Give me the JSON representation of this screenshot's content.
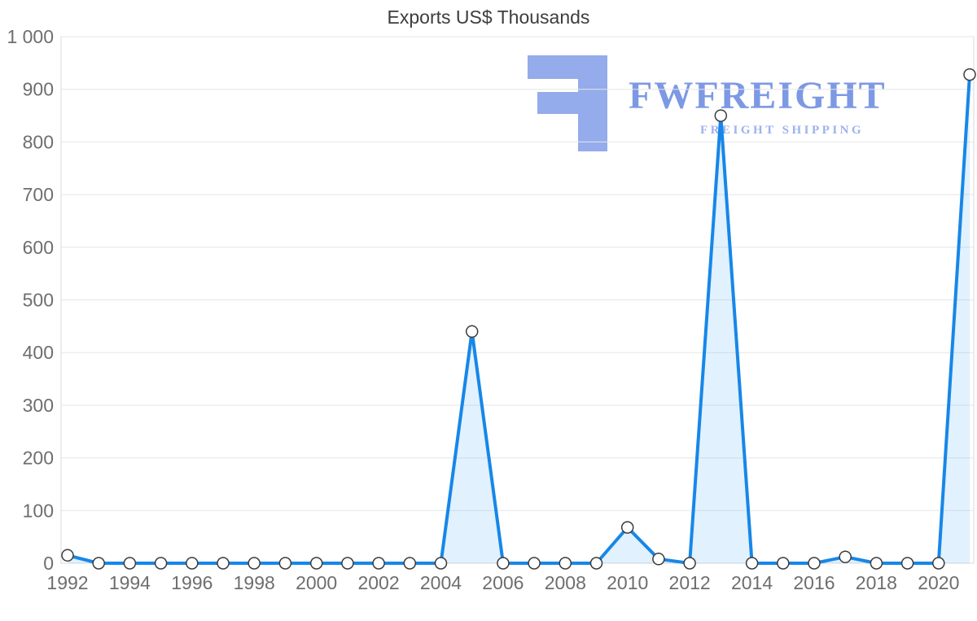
{
  "chart_data": {
    "type": "area",
    "title": "Exports US$ Thousands",
    "series_name": "Exports",
    "x": [
      1992,
      1993,
      1994,
      1995,
      1996,
      1997,
      1998,
      1999,
      2000,
      2001,
      2002,
      2003,
      2004,
      2005,
      2006,
      2007,
      2008,
      2009,
      2010,
      2011,
      2012,
      2013,
      2014,
      2015,
      2016,
      2017,
      2018,
      2019,
      2020,
      2021
    ],
    "values": [
      15,
      0,
      0,
      0,
      0,
      0,
      0,
      0,
      0,
      0,
      0,
      0,
      0,
      440,
      0,
      0,
      0,
      0,
      68,
      8,
      0,
      850,
      0,
      0,
      0,
      12,
      0,
      0,
      0,
      928
    ],
    "ylim": [
      0,
      1000
    ],
    "ytick_step": 100,
    "ytick_labels": [
      "0",
      "100",
      "200",
      "300",
      "400",
      "500",
      "600",
      "700",
      "800",
      "900",
      "1 000"
    ],
    "xtick_labels": [
      "1992",
      "1994",
      "1996",
      "1998",
      "2000",
      "2002",
      "2004",
      "2006",
      "2008",
      "2010",
      "2012",
      "2014",
      "2016",
      "2018",
      "2020"
    ],
    "xtick_every": 2,
    "grid": "horizontal",
    "legend": "none",
    "colors": {
      "line": "#1787e8",
      "fill": "rgba(66,165,245,0.16)",
      "marker_fill": "#ffffff",
      "marker_stroke": "#3b3b3b",
      "grid": "#e5e5e5",
      "axis_border": "#d9d9d9",
      "tick_text": "#6e6e6e",
      "title_text": "#3d3d3d"
    }
  },
  "watermark": {
    "brand": "FWFREIGHT",
    "tagline": "FREIGHT SHIPPING",
    "color": "#8ba5ea"
  }
}
